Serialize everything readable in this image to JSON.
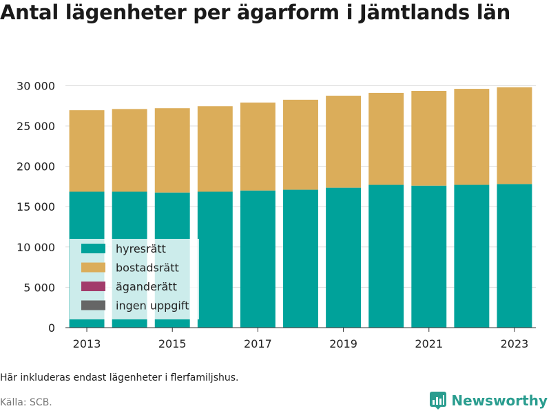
{
  "title": "Antal lägenheter per ägarform i Jämtlands län",
  "note": "Här inkluderas endast lägenheter i flerfamiljshus.",
  "source": "Källa: SCB.",
  "brand": "Newsworthy",
  "colors": {
    "hyresratt": "#00a29a",
    "bostadsratt": "#dbad5a",
    "aganderatt": "#a23b6a",
    "ingen_uppgift": "#666666",
    "brand": "#2a9d8f"
  },
  "chart_data": {
    "type": "bar",
    "stacked": true,
    "x": [
      2013,
      2014,
      2015,
      2016,
      2017,
      2018,
      2019,
      2020,
      2021,
      2022,
      2023
    ],
    "x_tick_labels": [
      "2013",
      "2015",
      "2017",
      "2019",
      "2021",
      "2023"
    ],
    "x_tick_values": [
      2013,
      2015,
      2017,
      2019,
      2021,
      2023
    ],
    "y_ticks": [
      0,
      5000,
      10000,
      15000,
      20000,
      25000,
      30000
    ],
    "y_tick_labels": [
      "0",
      "5 000",
      "10 000",
      "15 000",
      "20 000",
      "25 000",
      "30 000"
    ],
    "ylim": [
      0,
      30800
    ],
    "grid": true,
    "legend_position": "bottom-left",
    "series": [
      {
        "name": "hyresrätt",
        "color_key": "hyresratt",
        "values": [
          16850,
          16850,
          16750,
          16850,
          17000,
          17100,
          17350,
          17700,
          17600,
          17700,
          17800
        ]
      },
      {
        "name": "bostadsrätt",
        "color_key": "bostadsratt",
        "values": [
          10100,
          10250,
          10450,
          10600,
          10900,
          11150,
          11400,
          11400,
          11750,
          11900,
          12000
        ]
      },
      {
        "name": "äganderätt",
        "color_key": "aganderatt",
        "values": [
          0,
          0,
          0,
          0,
          0,
          0,
          0,
          0,
          0,
          0,
          0
        ]
      },
      {
        "name": "ingen uppgift",
        "color_key": "ingen_uppgift",
        "values": [
          0,
          0,
          0,
          0,
          0,
          0,
          0,
          0,
          0,
          0,
          0
        ]
      }
    ]
  }
}
